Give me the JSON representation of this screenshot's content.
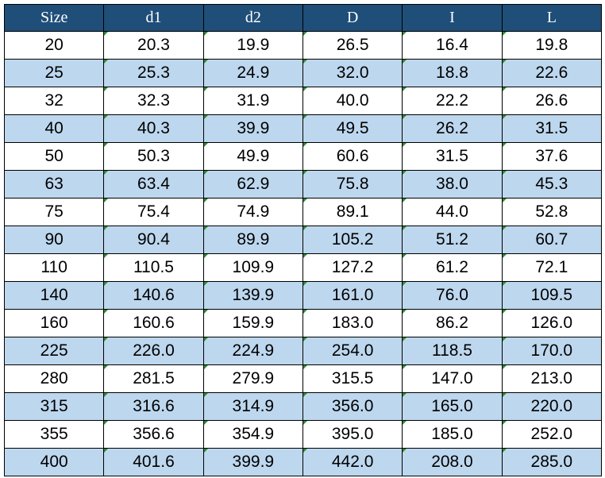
{
  "table": {
    "header": [
      "Size",
      "d1",
      "d2",
      "D",
      "I",
      "L"
    ],
    "rows": [
      [
        "20",
        "20.3",
        "19.9",
        "26.5",
        "16.4",
        "19.8"
      ],
      [
        "25",
        "25.3",
        "24.9",
        "32.0",
        "18.8",
        "22.6"
      ],
      [
        "32",
        "32.3",
        "31.9",
        "40.0",
        "22.2",
        "26.6"
      ],
      [
        "40",
        "40.3",
        "39.9",
        "49.5",
        "26.2",
        "31.5"
      ],
      [
        "50",
        "50.3",
        "49.9",
        "60.6",
        "31.5",
        "37.6"
      ],
      [
        "63",
        "63.4",
        "62.9",
        "75.8",
        "38.0",
        "45.3"
      ],
      [
        "75",
        "75.4",
        "74.9",
        "89.1",
        "44.0",
        "52.8"
      ],
      [
        "90",
        "90.4",
        "89.9",
        "105.2",
        "51.2",
        "60.7"
      ],
      [
        "110",
        "110.5",
        "109.9",
        "127.2",
        "61.2",
        "72.1"
      ],
      [
        "140",
        "140.6",
        "139.9",
        "161.0",
        "76.0",
        "109.5"
      ],
      [
        "160",
        "160.6",
        "159.9",
        "183.0",
        "86.2",
        "126.0"
      ],
      [
        "225",
        "226.0",
        "224.9",
        "254.0",
        "118.5",
        "170.0"
      ],
      [
        "280",
        "281.5",
        "279.9",
        "315.5",
        "147.0",
        "213.0"
      ],
      [
        "315",
        "316.6",
        "314.9",
        "356.0",
        "165.0",
        "220.0"
      ],
      [
        "355",
        "356.6",
        "354.9",
        "395.0",
        "185.0",
        "252.0"
      ],
      [
        "400",
        "401.6",
        "399.9",
        "442.0",
        "208.0",
        "285.0"
      ]
    ]
  }
}
